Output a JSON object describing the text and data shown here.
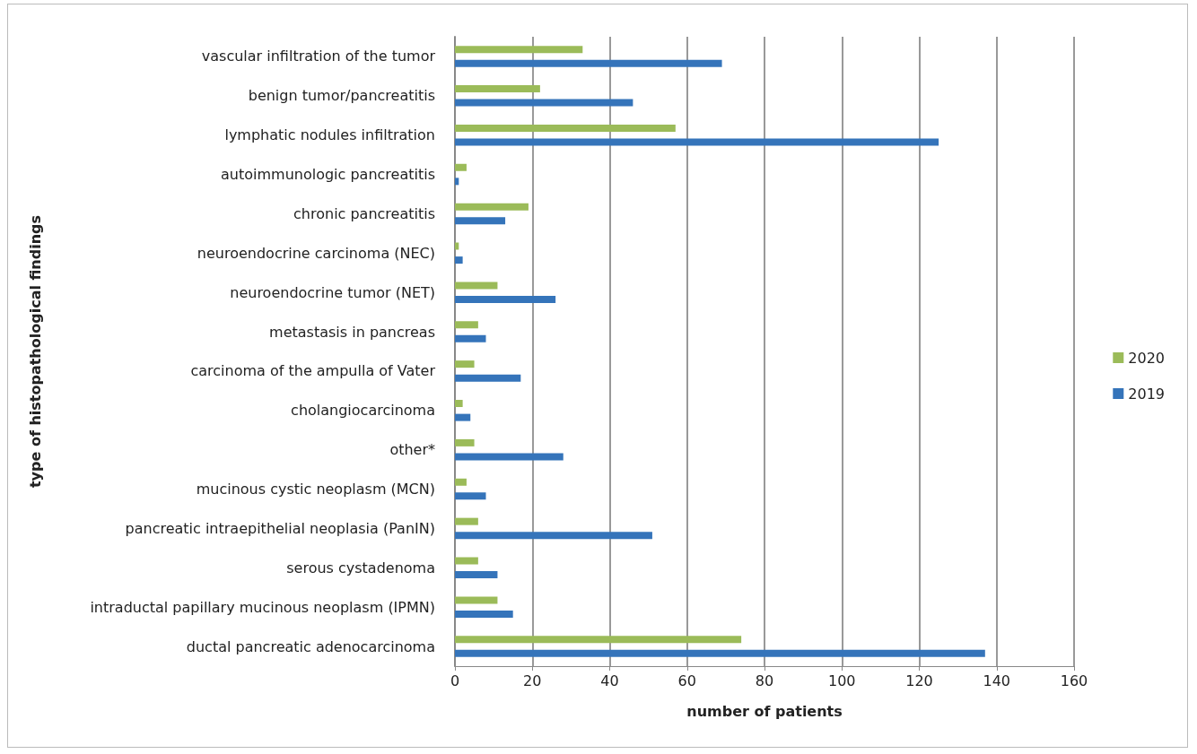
{
  "chart_data": {
    "type": "bar",
    "orientation": "horizontal",
    "xlabel": "number of patients",
    "ylabel": "type of histopathological findings",
    "categories": [
      "vascular infiltration of the tumor",
      "benign tumor/pancreatitis",
      "lymphatic nodules infiltration",
      "autoimmunologic pancreatitis",
      "chronic pancreatitis",
      "neuroendocrine carcinoma (NEC)",
      "neuroendocrine tumor (NET)",
      "metastasis in pancreas",
      "carcinoma of the ampulla of Vater",
      "cholangiocarcinoma",
      "other*",
      "mucinous cystic neoplasm (MCN)",
      "pancreatic intraepithelial neoplasia (PanIN)",
      "serous cystadenoma",
      "intraductal papillary mucinous neoplasm (IPMN)",
      "ductal pancreatic adenocarcinoma"
    ],
    "series": [
      {
        "name": "2020",
        "color": "#9bbb59",
        "values": [
          33,
          22,
          57,
          3,
          19,
          1,
          11,
          6,
          5,
          2,
          5,
          3,
          6,
          6,
          11,
          74
        ]
      },
      {
        "name": "2019",
        "color": "#3574ba",
        "values": [
          69,
          46,
          125,
          1,
          13,
          2,
          26,
          8,
          17,
          4,
          28,
          8,
          51,
          11,
          15,
          137
        ]
      }
    ],
    "xlim": [
      0,
      160
    ],
    "xticks": [
      0,
      20,
      40,
      60,
      80,
      100,
      120,
      140,
      160
    ],
    "grid": "x",
    "legend": "right"
  }
}
